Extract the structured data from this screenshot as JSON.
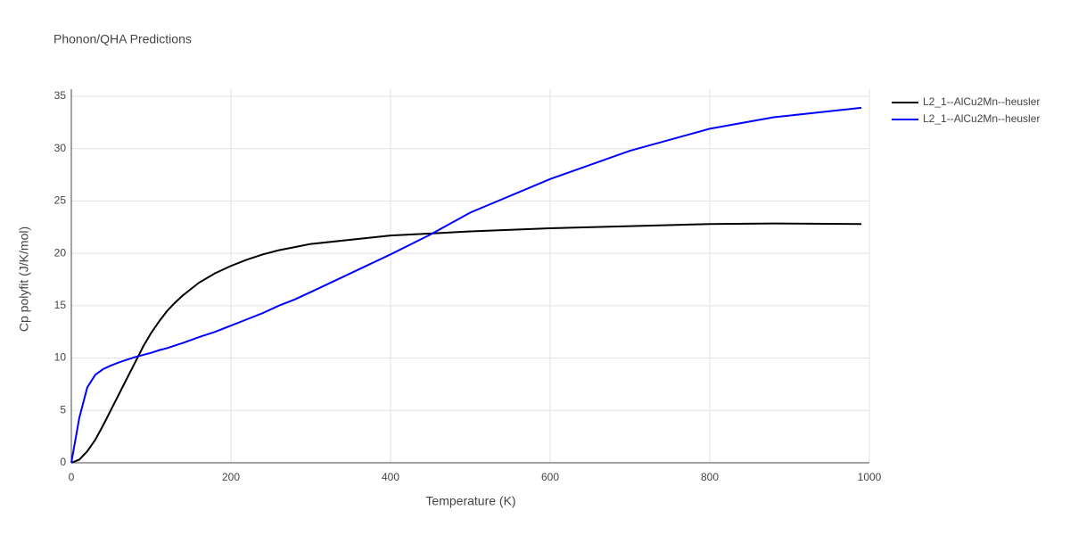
{
  "chart_data": {
    "type": "line",
    "title": "Phonon/QHA Predictions",
    "x_label": "Temperature (K)",
    "y_label": "Cp polyfit (J/K/mol)",
    "x": [
      0,
      10,
      20,
      30,
      40,
      50,
      60,
      70,
      80,
      90,
      100,
      110,
      120,
      130,
      140,
      160,
      180,
      200,
      220,
      240,
      260,
      280,
      300,
      350,
      400,
      450,
      500,
      600,
      700,
      800,
      880,
      990
    ],
    "series": [
      {
        "name": "L2_1--AlCu2Mn--heusler",
        "color": "#000000",
        "values": [
          0,
          0.3,
          1.1,
          2.2,
          3.6,
          5.1,
          6.6,
          8.1,
          9.6,
          11.1,
          12.4,
          13.5,
          14.5,
          15.3,
          16.0,
          17.2,
          18.1,
          18.8,
          19.4,
          19.9,
          20.3,
          20.6,
          20.9,
          21.3,
          21.7,
          21.9,
          22.1,
          22.4,
          22.6,
          22.8,
          22.85,
          22.8
        ]
      },
      {
        "name": "L2_1--AlCu2Mn--heusler",
        "color": "#0000ff",
        "values": [
          0,
          4.3,
          7.2,
          8.4,
          8.95,
          9.3,
          9.6,
          9.85,
          10.1,
          10.3,
          10.5,
          10.75,
          10.95,
          11.2,
          11.45,
          12.0,
          12.5,
          13.1,
          13.7,
          14.3,
          15.0,
          15.6,
          16.3,
          18.1,
          19.9,
          21.8,
          23.9,
          27.1,
          29.8,
          31.9,
          33.0,
          33.9
        ]
      }
    ],
    "xlim": [
      0,
      1000
    ],
    "xticks": [
      0,
      200,
      400,
      600,
      800,
      1000
    ],
    "ylim": [
      0,
      35
    ],
    "yticks": [
      0,
      5,
      10,
      15,
      20,
      25,
      30,
      35
    ],
    "grid": true,
    "legend": "top-right"
  }
}
